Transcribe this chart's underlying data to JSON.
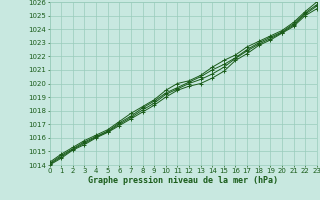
{
  "xlabel": "Graphe pression niveau de la mer (hPa)",
  "xlim": [
    0,
    23
  ],
  "ylim": [
    1014,
    1026
  ],
  "yticks": [
    1014,
    1015,
    1016,
    1017,
    1018,
    1019,
    1020,
    1021,
    1022,
    1023,
    1024,
    1025,
    1026
  ],
  "xticks": [
    0,
    1,
    2,
    3,
    4,
    5,
    6,
    7,
    8,
    9,
    10,
    11,
    12,
    13,
    14,
    15,
    16,
    17,
    18,
    19,
    20,
    21,
    22,
    23
  ],
  "background_color": "#c8e8e0",
  "grid_color": "#99ccbb",
  "line_color": "#1a5c1a",
  "curve1_y": [
    1014.0,
    1014.5,
    1015.1,
    1015.5,
    1016.0,
    1016.4,
    1016.9,
    1017.4,
    1017.9,
    1018.4,
    1019.0,
    1019.5,
    1019.8,
    1020.0,
    1020.4,
    1020.9,
    1021.7,
    1022.2,
    1022.8,
    1023.2,
    1023.7,
    1024.2,
    1025.0,
    1025.5
  ],
  "curve2_y": [
    1014.1,
    1014.7,
    1015.2,
    1015.7,
    1016.1,
    1016.5,
    1017.1,
    1017.6,
    1018.2,
    1018.7,
    1019.3,
    1019.7,
    1020.1,
    1020.5,
    1021.0,
    1021.4,
    1021.9,
    1022.5,
    1023.0,
    1023.4,
    1023.8,
    1024.4,
    1025.2,
    1025.8
  ],
  "curve3_y": [
    1014.2,
    1014.8,
    1015.3,
    1015.8,
    1016.2,
    1016.6,
    1017.2,
    1017.8,
    1018.3,
    1018.8,
    1019.5,
    1020.0,
    1020.2,
    1020.6,
    1021.2,
    1021.7,
    1022.1,
    1022.7,
    1023.1,
    1023.5,
    1023.9,
    1024.5,
    1025.3,
    1026.0
  ],
  "curve4_y": [
    1014.05,
    1014.6,
    1015.15,
    1015.6,
    1016.05,
    1016.45,
    1017.0,
    1017.5,
    1018.05,
    1018.55,
    1019.2,
    1019.6,
    1020.0,
    1020.3,
    1020.7,
    1021.2,
    1021.85,
    1022.4,
    1022.9,
    1023.3,
    1023.75,
    1024.3,
    1025.1,
    1025.7
  ],
  "markersize": 3,
  "linewidth": 0.7,
  "xlabel_fontsize": 6,
  "tick_fontsize": 5
}
